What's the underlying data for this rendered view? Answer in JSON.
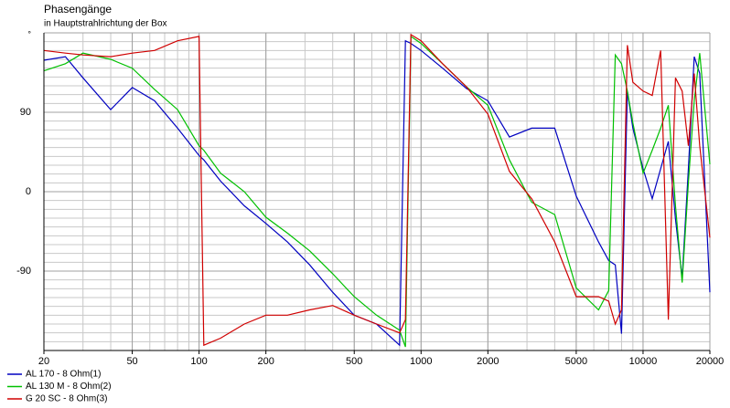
{
  "chart_data": {
    "type": "line",
    "title": "Phasengänge",
    "subtitle": "in Hauptstrahlrichtung der Box",
    "x": [
      20,
      25,
      30,
      40,
      50,
      63,
      80,
      100,
      105,
      125,
      160,
      200,
      250,
      315,
      400,
      500,
      630,
      800,
      850,
      900,
      1000,
      1250,
      1600,
      2000,
      2500,
      3150,
      4000,
      5000,
      6300,
      7000,
      7500,
      8000,
      8500,
      9000,
      10000,
      11000,
      12000,
      13000,
      14000,
      15000,
      16000,
      17000,
      18000,
      20000
    ],
    "series": [
      {
        "name": "AL 170 - 8 Ohm(1)",
        "color": "#0000c0",
        "values": [
          149,
          153,
          129,
          93,
          118,
          103,
          72,
          41,
          36,
          12,
          -16,
          -36,
          -57,
          -83,
          -114,
          -140,
          -150,
          -174,
          171,
          168,
          160,
          140,
          117,
          103,
          62,
          72,
          72,
          -5,
          -57,
          -78,
          -83,
          -161,
          114,
          72,
          26,
          -8,
          26,
          57,
          -31,
          -98,
          26,
          153,
          134,
          -114
        ]
      },
      {
        "name": "AL 130 M - 8 Ohm(2)",
        "color": "#00c000",
        "values": [
          137,
          145,
          157,
          150,
          140,
          116,
          93,
          52,
          47,
          21,
          0,
          -29,
          -47,
          -67,
          -93,
          -119,
          -140,
          -157,
          -176,
          176,
          168,
          145,
          119,
          98,
          36,
          -12,
          -26,
          -109,
          -134,
          -112,
          155,
          145,
          114,
          78,
          21,
          47,
          72,
          98,
          -16,
          -103,
          10,
          103,
          157,
          31
        ]
      },
      {
        "name": "G 20 SC - 8 Ohm(3)",
        "color": "#d00000",
        "values": [
          160,
          157,
          155,
          153,
          157,
          160,
          171,
          176,
          -174,
          -166,
          -150,
          -140,
          -140,
          -134,
          -129,
          -140,
          -150,
          -160,
          -145,
          178,
          171,
          145,
          119,
          88,
          23,
          -8,
          -57,
          -119,
          -119,
          -124,
          -150,
          -134,
          166,
          124,
          114,
          109,
          160,
          -145,
          129,
          114,
          52,
          134,
          52,
          -52
        ]
      }
    ],
    "xlim": [
      20,
      20000
    ],
    "xscale": "log",
    "xticks": [
      20,
      50,
      100,
      200,
      500,
      1000,
      2000,
      5000,
      10000,
      20000
    ],
    "ylim": [
      -180,
      180
    ],
    "yticks": [
      {
        "value": 180,
        "label": "°"
      },
      90,
      0,
      -90
    ],
    "grid": true,
    "legend": "bottom-left"
  }
}
